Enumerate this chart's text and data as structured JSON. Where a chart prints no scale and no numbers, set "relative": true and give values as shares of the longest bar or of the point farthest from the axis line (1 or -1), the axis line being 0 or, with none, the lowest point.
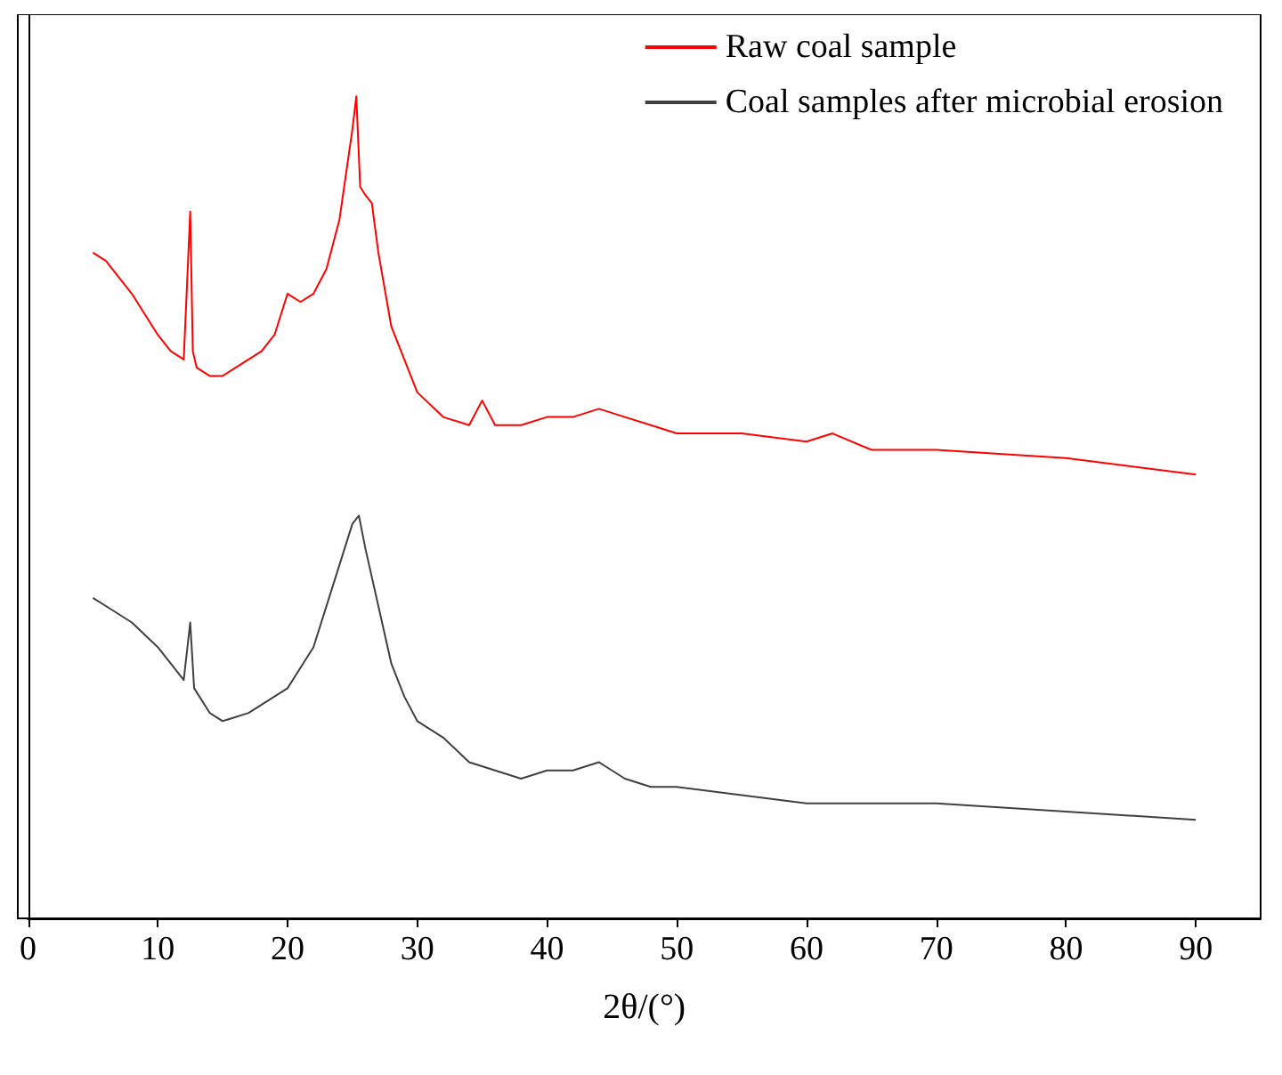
{
  "chart_data": {
    "type": "line",
    "relative": true,
    "xlabel": "2θ/(°)",
    "xlim": [
      0,
      95
    ],
    "xticks": [
      0,
      10,
      20,
      30,
      40,
      50,
      60,
      70,
      80,
      90
    ],
    "legend": "top right",
    "grid": false,
    "marker": "none",
    "line_style": "solid",
    "series": [
      {
        "name": "Raw coal sample",
        "color": "#ff0000",
        "x": [
          5,
          6,
          8,
          10,
          11,
          12,
          12.5,
          12.7,
          13,
          14,
          15,
          16,
          18,
          19,
          20,
          21,
          22,
          23,
          24,
          25,
          25.3,
          25.6,
          26,
          26.5,
          27,
          28,
          29,
          30,
          32,
          34,
          35,
          36,
          38,
          40,
          42,
          44,
          46,
          48,
          50,
          55,
          60,
          62,
          65,
          70,
          80,
          90
        ],
        "values": [
          0.81,
          0.8,
          0.76,
          0.71,
          0.69,
          0.68,
          0.86,
          0.69,
          0.67,
          0.66,
          0.66,
          0.67,
          0.69,
          0.71,
          0.76,
          0.75,
          0.76,
          0.79,
          0.85,
          0.96,
          1,
          0.89,
          0.88,
          0.87,
          0.81,
          0.72,
          0.68,
          0.64,
          0.61,
          0.6,
          0.63,
          0.6,
          0.6,
          0.61,
          0.61,
          0.62,
          0.61,
          0.6,
          0.59,
          0.59,
          0.58,
          0.59,
          0.57,
          0.57,
          0.56,
          0.54
        ]
      },
      {
        "name": "Coal samples after microbial erosion",
        "color": "#404040",
        "x": [
          5,
          6,
          8,
          10,
          12,
          12.5,
          12.8,
          14,
          15,
          17,
          20,
          22,
          24,
          25,
          25.5,
          26,
          27,
          28,
          29,
          30,
          32,
          34,
          36,
          38,
          40,
          42,
          44,
          46,
          48,
          50,
          55,
          60,
          70,
          80,
          90
        ],
        "values": [
          0.39,
          0.38,
          0.36,
          0.33,
          0.29,
          0.36,
          0.28,
          0.25,
          0.24,
          0.25,
          0.28,
          0.33,
          0.43,
          0.48,
          0.49,
          0.45,
          0.38,
          0.31,
          0.27,
          0.24,
          0.22,
          0.19,
          0.18,
          0.17,
          0.18,
          0.18,
          0.19,
          0.17,
          0.16,
          0.16,
          0.15,
          0.14,
          0.14,
          0.13,
          0.12
        ]
      }
    ]
  }
}
